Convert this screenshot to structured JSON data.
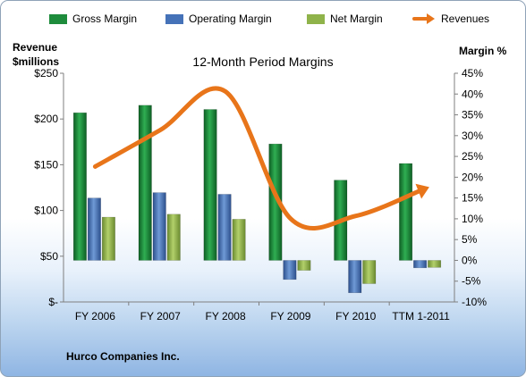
{
  "chart_data": {
    "type": "bar",
    "title": "12-Month Period Margins",
    "ylabel": "Revenue $millions",
    "ylabel_lines": [
      "Revenue",
      "$millions"
    ],
    "y2label": "Margin %",
    "categories": [
      "FY 2006",
      "FY 2007",
      "FY 2008",
      "FY 2009",
      "FY 2010",
      "TTM 1-2011"
    ],
    "ylim": [
      0,
      250
    ],
    "y2lim": [
      -10,
      45
    ],
    "y_ticks": [
      0,
      50,
      100,
      150,
      200,
      250
    ],
    "y_tick_labels": [
      "$-",
      "$50",
      "$100",
      "$150",
      "$200",
      "$250"
    ],
    "y2_ticks": [
      -10,
      -5,
      0,
      5,
      10,
      15,
      20,
      25,
      30,
      35,
      40,
      45
    ],
    "y2_tick_labels": [
      "-10%",
      "-5%",
      "0%",
      "5%",
      "10%",
      "15%",
      "20%",
      "25%",
      "30%",
      "35%",
      "40%",
      "45%"
    ],
    "series": [
      {
        "name": "Gross Margin",
        "axis": "right",
        "kind": "bar",
        "color": "#1e8c3c",
        "values": [
          35.5,
          37.3,
          36.3,
          28.0,
          19.3,
          23.3
        ]
      },
      {
        "name": "Operating Margin",
        "axis": "right",
        "kind": "bar",
        "color": "#4572b8",
        "values": [
          15.0,
          16.3,
          15.9,
          -4.6,
          -7.8,
          -1.8
        ]
      },
      {
        "name": "Net Margin",
        "axis": "right",
        "kind": "bar",
        "color": "#8fb34a",
        "values": [
          10.4,
          11.1,
          9.9,
          -2.4,
          -5.6,
          -1.7
        ]
      },
      {
        "name": "Revenues",
        "axis": "left",
        "kind": "line",
        "color": "#e8751a",
        "values": [
          148,
          188,
          230,
          91,
          94,
          122
        ]
      }
    ],
    "legend_position": "top",
    "grid": false
  },
  "footer": {
    "company": "Hurco Companies Inc."
  }
}
